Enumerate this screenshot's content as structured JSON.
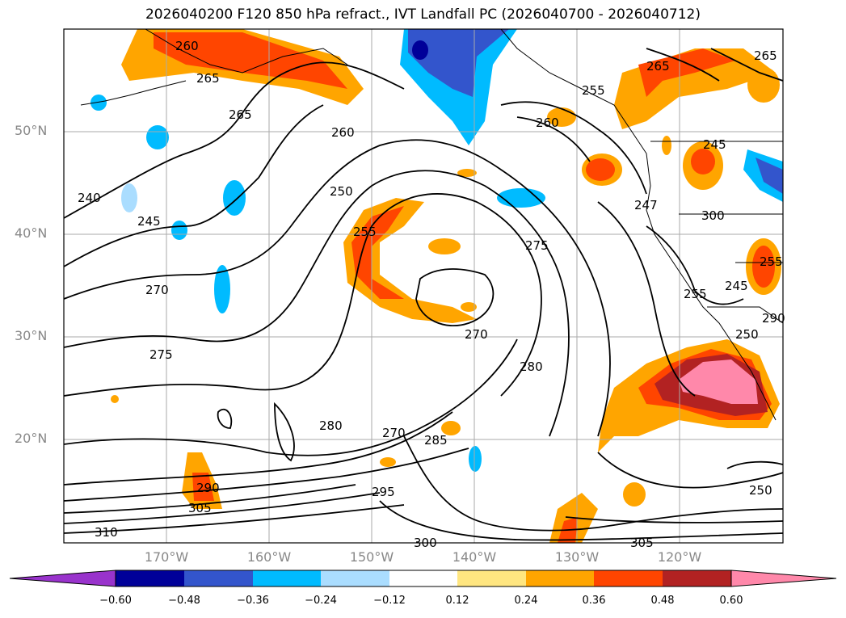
{
  "title": "2026040200 F120 850 hPa refract., IVT Landfall PC (2026040700 - 2026040712)",
  "lat_labels": [
    "50°N",
    "40°N",
    "30°N",
    "20°N"
  ],
  "lon_labels": [
    "170°W",
    "160°W",
    "150°W",
    "140°W",
    "130°W",
    "120°W"
  ],
  "contour_labels": [
    "260",
    "265",
    "260",
    "265",
    "265",
    "255",
    "260",
    "265",
    "250",
    "255",
    "270",
    "275",
    "275",
    "270",
    "280",
    "285",
    "270",
    "280",
    "295",
    "290",
    "305",
    "310",
    "300",
    "305",
    "290",
    "300",
    "245",
    "250",
    "255",
    "245",
    "250",
    "255",
    "240",
    "245",
    "247"
  ],
  "colorbar": {
    "ticks": [
      "−0.60",
      "−0.48",
      "−0.36",
      "−0.24",
      "−0.12",
      "0.12",
      "0.24",
      "0.36",
      "0.48",
      "0.60"
    ],
    "colors": [
      "#9933cc",
      "#000099",
      "#3355cc",
      "#00bbff",
      "#aaddff",
      "#ffffff",
      "#ffe680",
      "#ffa500",
      "#ff4500",
      "#b22222",
      "#ff88aa"
    ]
  }
}
